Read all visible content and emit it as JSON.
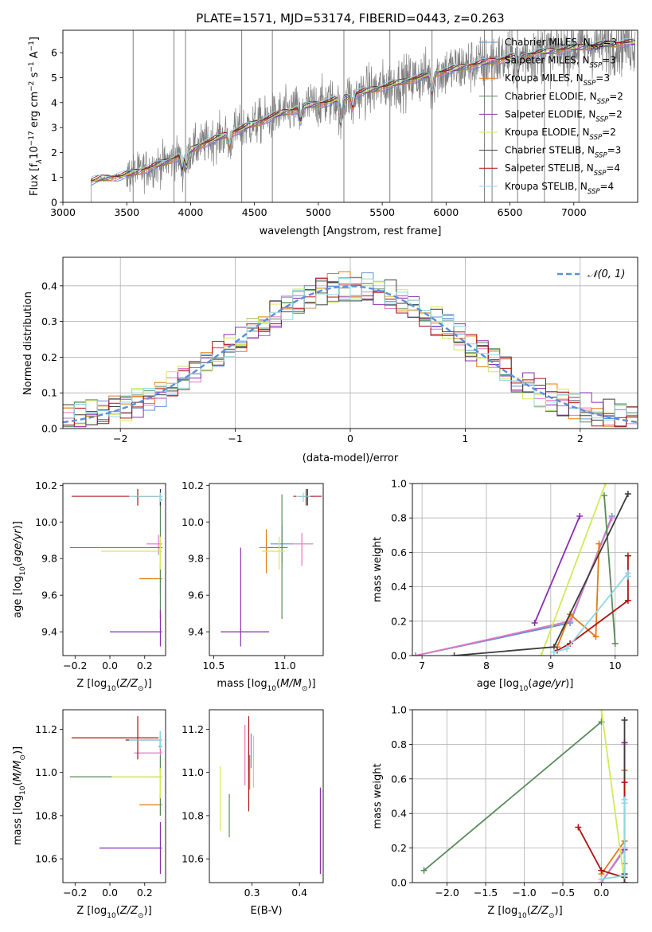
{
  "figure_title": "PLATE=1571, MJD=53174, FIBERID=0443, z=0.263",
  "colors": {
    "data": "#7f7f7f",
    "grid": "#b0b0b0",
    "models": [
      "#5b8fd8",
      "#e377c2",
      "#e07b10",
      "#5a8a5a",
      "#8b2fb0",
      "#d4e85a",
      "#3c3c3c",
      "#b01010",
      "#8cd8e6"
    ],
    "gaussian": "#5b8fd8"
  },
  "legend_labels": [
    {
      "name": "Chabrier MILES, N",
      "sub": "SSP",
      "tail": "=3"
    },
    {
      "name": "Salpeter MILES, N",
      "sub": "SSP",
      "tail": "=3"
    },
    {
      "name": "Kroupa MILES, N",
      "sub": "SSP",
      "tail": "=3"
    },
    {
      "name": "Chabrier ELODIE, N",
      "sub": "SSP",
      "tail": "=2"
    },
    {
      "name": "Salpeter ELODIE, N",
      "sub": "SSP",
      "tail": "=2"
    },
    {
      "name": "Kroupa ELODIE, N",
      "sub": "SSP",
      "tail": "=2"
    },
    {
      "name": "Chabrier STELIB, N",
      "sub": "SSP",
      "tail": "=3"
    },
    {
      "name": "Salpeter STELIB, N",
      "sub": "SSP",
      "tail": "=4"
    },
    {
      "name": "Kroupa STELIB, N",
      "sub": "SSP",
      "tail": "=4"
    }
  ],
  "chart_data": [
    {
      "type": "line",
      "title": "PLATE=1571, MJD=53174, FIBERID=0443, z=0.263",
      "xlabel": "wavelength [Angstrom, rest frame]",
      "ylabel": "Flux [f_λ 10^-17 erg cm^-2 s^-1 A^-1]",
      "xlim": [
        3000,
        7500
      ],
      "ylim": [
        0,
        6.9
      ],
      "xticks": [
        3000,
        3500,
        4000,
        4500,
        5000,
        5500,
        6000,
        6500,
        7000
      ],
      "yticks": [
        0,
        1,
        2,
        3,
        4,
        5,
        6
      ],
      "grid": false,
      "legend": "upper-right",
      "spectrum_start": 3220,
      "model_continuum": [
        [
          3220,
          0.85
        ],
        [
          3300,
          0.95
        ],
        [
          3450,
          1.05
        ],
        [
          3600,
          1.25
        ],
        [
          3800,
          1.6
        ],
        [
          3950,
          1.95
        ],
        [
          4100,
          2.35
        ],
        [
          4300,
          2.75
        ],
        [
          4500,
          3.15
        ],
        [
          4700,
          3.55
        ],
        [
          4900,
          3.85
        ],
        [
          5100,
          4.05
        ],
        [
          5300,
          4.35
        ],
        [
          5600,
          4.75
        ],
        [
          5900,
          5.15
        ],
        [
          6200,
          5.5
        ],
        [
          6500,
          5.8
        ],
        [
          6800,
          6.05
        ],
        [
          7100,
          6.25
        ],
        [
          7400,
          6.4
        ]
      ],
      "flagged_lines": [
        3550,
        3870,
        3960,
        4400,
        4640,
        5200,
        5560,
        5890,
        6300,
        6360,
        6560,
        6770,
        7040
      ]
    },
    {
      "type": "line",
      "xlabel": "(data-model)/error",
      "ylabel": "Normed distribution",
      "xlim": [
        -2.5,
        2.5
      ],
      "ylim": [
        0,
        0.48
      ],
      "xticks": [
        -2,
        -1,
        0,
        1,
        2
      ],
      "yticks": [
        0.0,
        0.1,
        0.2,
        0.3,
        0.4
      ],
      "grid": true,
      "legend": "upper-right",
      "gaussian_label": "𝒩(0, 1)",
      "gaussian": {
        "mean": 0,
        "sigma": 1
      },
      "bin_width": 0.1
    },
    {
      "type": "scatter",
      "xlabel": "Z [log10(Z/Z⊙)]",
      "ylabel": "age [log10(age/yr)]",
      "xlim": [
        -0.27,
        0.32
      ],
      "ylim": [
        9.27,
        10.21
      ],
      "xticks": [
        -0.2,
        0.0,
        0.2
      ],
      "yticks": [
        9.4,
        9.6,
        9.8,
        10.0,
        10.2
      ],
      "points": [
        {
          "model": 0,
          "x": 0.29,
          "y": 10.12,
          "xe": [
            0.0,
            0.01
          ],
          "ye": [
            0.03,
            0.02
          ]
        },
        {
          "model": 1,
          "x": 0.28,
          "y": 9.88,
          "xe": [
            0.07,
            0.02
          ],
          "ye": [
            0.06,
            0.05
          ]
        },
        {
          "model": 2,
          "x": 0.29,
          "y": 9.69,
          "xe": [
            0.12,
            0.01
          ],
          "ye": [
            0.08,
            0.07
          ]
        },
        {
          "model": 3,
          "x": 0.29,
          "y": 9.86,
          "xe": [
            0.52,
            0.01
          ],
          "ye": [
            0.39,
            0.29
          ]
        },
        {
          "model": 4,
          "x": 0.29,
          "y": 9.4,
          "xe": [
            0.29,
            0.01
          ],
          "ye": [
            0.08,
            0.12
          ]
        },
        {
          "model": 5,
          "x": 0.29,
          "y": 9.84,
          "xe": [
            0.34,
            0.01
          ],
          "ye": [
            0.1,
            0.08
          ]
        },
        {
          "model": 6,
          "x": 0.29,
          "y": 10.14,
          "xe": [
            0.15,
            0.01
          ],
          "ye": [
            0.05,
            0.04
          ]
        },
        {
          "model": 7,
          "x": 0.16,
          "y": 10.14,
          "xe": [
            0.38,
            0.12
          ],
          "ye": [
            0.05,
            0.04
          ]
        },
        {
          "model": 8,
          "x": 0.29,
          "y": 10.14,
          "xe": [
            0.18,
            0.01
          ],
          "ye": [
            0.03,
            0.02
          ]
        }
      ]
    },
    {
      "type": "scatter",
      "xlabel": "mass [log10(M/M⊙)]",
      "ylabel": "",
      "xlim": [
        10.47,
        11.27
      ],
      "ylim": [
        9.27,
        10.21
      ],
      "xticks": [
        10.5,
        11.0
      ],
      "yticks": [
        9.4,
        9.6,
        9.8,
        10.0,
        10.2
      ],
      "points": [
        {
          "model": 0,
          "x": 10.98,
          "y": 9.88,
          "xe": [
            0.08,
            0.08
          ],
          "ye": [
            0.1,
            0.1
          ]
        },
        {
          "model": 1,
          "x": 11.12,
          "y": 9.88,
          "xe": [
            0.08,
            0.08
          ],
          "ye": [
            0.12,
            0.06
          ]
        },
        {
          "model": 2,
          "x": 10.87,
          "y": 9.86,
          "xe": [
            0.05,
            0.05
          ],
          "ye": [
            0.14,
            0.1
          ]
        },
        {
          "model": 3,
          "x": 10.98,
          "y": 9.86,
          "xe": [
            0.1,
            0.04
          ],
          "ye": [
            0.39,
            0.29
          ]
        },
        {
          "model": 4,
          "x": 10.69,
          "y": 9.4,
          "xe": [
            0.14,
            0.2
          ],
          "ye": [
            0.08,
            0.46
          ]
        },
        {
          "model": 5,
          "x": 10.96,
          "y": 9.84,
          "xe": [
            0.12,
            0.04
          ],
          "ye": [
            0.1,
            0.08
          ]
        },
        {
          "model": 6,
          "x": 11.15,
          "y": 10.14,
          "xe": [
            0.05,
            0.05
          ],
          "ye": [
            0.05,
            0.04
          ]
        },
        {
          "model": 7,
          "x": 11.16,
          "y": 10.14,
          "xe": [
            0.1,
            0.1
          ],
          "ye": [
            0.05,
            0.04
          ]
        },
        {
          "model": 8,
          "x": 11.13,
          "y": 10.14,
          "xe": [
            0.05,
            0.05
          ],
          "ye": [
            0.03,
            0.02
          ]
        }
      ]
    },
    {
      "type": "line",
      "xlabel": "age [log10(age/yr)]",
      "ylabel": "mass weight",
      "xlim": [
        6.85,
        10.35
      ],
      "ylim": [
        0,
        1.0
      ],
      "xticks": [
        7,
        8,
        9,
        10
      ],
      "yticks": [
        0.0,
        0.2,
        0.4,
        0.6,
        0.8,
        1.0
      ],
      "grid": true,
      "series": [
        {
          "model": 0,
          "points": [
            [
              6.9,
              0.0
            ],
            [
              9.3,
              0.19
            ],
            [
              9.95,
              0.81
            ]
          ]
        },
        {
          "model": 1,
          "points": [
            [
              6.9,
              0.0
            ],
            [
              9.3,
              0.2
            ],
            [
              9.95,
              0.8
            ]
          ]
        },
        {
          "model": 2,
          "points": [
            [
              9.1,
              0.05
            ],
            [
              9.3,
              0.24
            ],
            [
              9.7,
              0.11
            ],
            [
              9.75,
              0.65
            ]
          ]
        },
        {
          "model": 3,
          "points": [
            [
              9.83,
              0.93
            ],
            [
              10.0,
              0.07
            ]
          ]
        },
        {
          "model": 4,
          "points": [
            [
              8.75,
              0.19
            ],
            [
              9.45,
              0.81
            ]
          ]
        },
        {
          "model": 5,
          "points": [
            [
              8.85,
              0.0
            ],
            [
              9.85,
              1.0
            ]
          ]
        },
        {
          "model": 6,
          "points": [
            [
              7.5,
              0.0
            ],
            [
              9.05,
              0.05
            ],
            [
              10.2,
              0.94
            ]
          ]
        },
        {
          "model": 7,
          "points": [
            [
              9.1,
              0.03
            ],
            [
              9.3,
              0.07
            ],
            [
              10.2,
              0.32
            ],
            [
              10.2,
              0.58
            ]
          ]
        },
        {
          "model": 8,
          "points": [
            [
              9.05,
              0.02
            ],
            [
              9.25,
              0.04
            ],
            [
              10.2,
              0.48
            ],
            [
              10.2,
              0.46
            ]
          ]
        }
      ]
    },
    {
      "type": "scatter",
      "xlabel": "Z [log10(Z/Z⊙)]",
      "ylabel": "mass [log10(M/M⊙)]",
      "xlim": [
        -0.27,
        0.32
      ],
      "ylim": [
        10.49,
        11.29
      ],
      "xticks": [
        -0.2,
        0.0,
        0.2
      ],
      "yticks": [
        10.6,
        10.8,
        11.0,
        11.2
      ],
      "points": [
        {
          "model": 0,
          "x": 0.29,
          "y": 11.12,
          "xe": [
            0.01,
            0.01
          ],
          "ye": [
            0.03,
            0.03
          ]
        },
        {
          "model": 1,
          "x": 0.29,
          "y": 11.09,
          "xe": [
            0.15,
            0.01
          ],
          "ye": [
            0.08,
            0.08
          ]
        },
        {
          "model": 2,
          "x": 0.29,
          "y": 10.85,
          "xe": [
            0.12,
            0.01
          ],
          "ye": [
            0.05,
            0.05
          ]
        },
        {
          "model": 3,
          "x": 0.29,
          "y": 10.98,
          "xe": [
            0.52,
            0.01
          ],
          "ye": [
            0.18,
            0.1
          ]
        },
        {
          "model": 4,
          "x": 0.29,
          "y": 10.65,
          "xe": [
            0.35,
            0.01
          ],
          "ye": [
            0.12,
            0.12
          ]
        },
        {
          "model": 5,
          "x": 0.29,
          "y": 10.98,
          "xe": [
            0.28,
            0.01
          ],
          "ye": [
            0.1,
            0.04
          ]
        },
        {
          "model": 6,
          "x": 0.29,
          "y": 11.15,
          "xe": [
            0.2,
            0.01
          ],
          "ye": [
            0.04,
            0.04
          ]
        },
        {
          "model": 7,
          "x": 0.16,
          "y": 11.16,
          "xe": [
            0.38,
            0.12
          ],
          "ye": [
            0.1,
            0.1
          ]
        },
        {
          "model": 8,
          "x": 0.29,
          "y": 11.15,
          "xe": [
            0.18,
            0.01
          ],
          "ye": [
            0.04,
            0.04
          ]
        }
      ]
    },
    {
      "type": "scatter",
      "xlabel": "E(B-V)",
      "ylabel": "",
      "xlim": [
        0.21,
        0.45
      ],
      "ylim": [
        10.49,
        11.29
      ],
      "xticks": [
        0.3,
        0.4
      ],
      "yticks": [
        10.6,
        10.8,
        11.0,
        11.2
      ],
      "points": [
        {
          "model": 0,
          "x": 0.298,
          "y": 11.1,
          "ye": [
            0.08,
            0.08
          ]
        },
        {
          "model": 1,
          "x": 0.285,
          "y": 11.06,
          "ye": [
            0.12,
            0.16
          ]
        },
        {
          "model": 2,
          "x": 0.295,
          "y": 11.0,
          "ye": [
            0.08,
            0.08
          ]
        },
        {
          "model": 3,
          "x": 0.252,
          "y": 10.8,
          "ye": [
            0.1,
            0.1
          ]
        },
        {
          "model": 4,
          "x": 0.444,
          "y": 10.73,
          "ye": [
            0.2,
            0.2
          ]
        },
        {
          "model": 5,
          "x": 0.233,
          "y": 10.88,
          "ye": [
            0.15,
            0.15
          ]
        },
        {
          "model": 6,
          "x": 0.293,
          "y": 11.05,
          "ye": [
            0.04,
            0.04
          ]
        },
        {
          "model": 7,
          "x": 0.293,
          "y": 11.05,
          "ye": [
            0.23,
            0.21
          ]
        },
        {
          "model": 8,
          "x": 0.303,
          "y": 11.05,
          "ye": [
            0.12,
            0.12
          ]
        }
      ]
    },
    {
      "type": "line",
      "xlabel": "Z [log10(Z/Z⊙)]",
      "ylabel": "mass weight",
      "xlim": [
        -2.45,
        0.47
      ],
      "ylim": [
        0,
        1.0
      ],
      "xticks": [
        -2.0,
        -1.5,
        -1.0,
        -0.5,
        0.0
      ],
      "yticks": [
        0.0,
        0.2,
        0.4,
        0.6,
        0.8,
        1.0
      ],
      "grid": true,
      "series": [
        {
          "model": 0,
          "points": [
            [
              0.0,
              0.0
            ],
            [
              0.3,
              0.19
            ],
            [
              0.3,
              0.81
            ]
          ]
        },
        {
          "model": 1,
          "points": [
            [
              0.0,
              0.0
            ],
            [
              0.3,
              0.2
            ],
            [
              0.3,
              0.8
            ]
          ]
        },
        {
          "model": 2,
          "points": [
            [
              0.0,
              0.05
            ],
            [
              0.3,
              0.24
            ],
            [
              0.3,
              0.11
            ],
            [
              0.3,
              0.65
            ]
          ]
        },
        {
          "model": 3,
          "points": [
            [
              -2.3,
              0.07
            ],
            [
              0.0,
              0.93
            ]
          ]
        },
        {
          "model": 4,
          "points": [
            [
              0.3,
              0.19
            ],
            [
              0.3,
              0.81
            ]
          ]
        },
        {
          "model": 5,
          "points": [
            [
              0.0,
              1.0
            ],
            [
              0.3,
              0.0
            ]
          ]
        },
        {
          "model": 6,
          "points": [
            [
              0.3,
              0.0
            ],
            [
              0.3,
              0.05
            ],
            [
              0.3,
              0.94
            ]
          ]
        },
        {
          "model": 7,
          "points": [
            [
              -0.3,
              0.32
            ],
            [
              0.0,
              0.07
            ],
            [
              0.3,
              0.03
            ],
            [
              0.3,
              0.58
            ]
          ]
        },
        {
          "model": 8,
          "points": [
            [
              0.0,
              0.02
            ],
            [
              0.3,
              0.04
            ],
            [
              0.3,
              0.48
            ],
            [
              0.3,
              0.46
            ]
          ]
        }
      ]
    }
  ]
}
